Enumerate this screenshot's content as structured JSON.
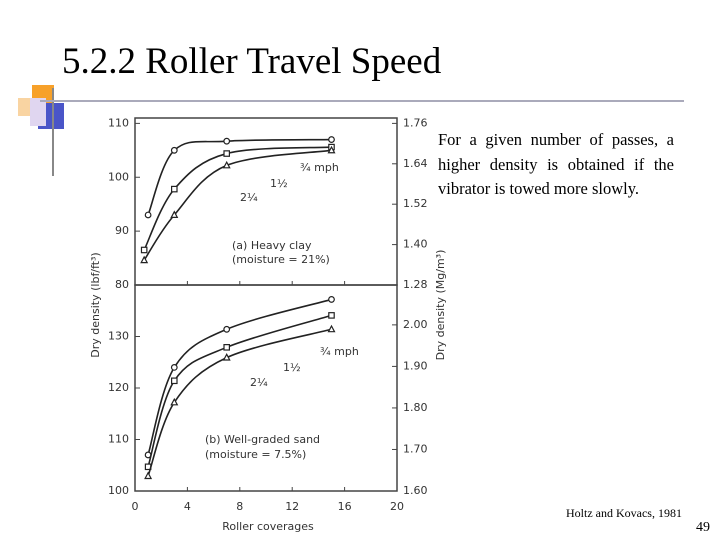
{
  "slide_title": "5.2.2 Roller Travel Speed",
  "body": "For a given number of passes, a higher density is obtained if the vibrator is towed more slowly.",
  "citation": "Holtz and Kovacs, 1981",
  "page_number": "49",
  "chart_data": [
    {
      "type": "line",
      "ylabel": "Dry density (lbf/ft³)",
      "y2label": "Dry density (Mg/m³)",
      "annotations": [
        "¾ mph",
        "1½",
        "2¼",
        "(a) Heavy clay",
        "(moisture = 21%)"
      ],
      "ylim": [
        80,
        111
      ],
      "yticks": [
        80,
        90,
        100,
        110
      ],
      "y2lim": [
        1.28,
        1.776
      ],
      "y2ticks": [
        {
          "value": 1.28,
          "label": "1.28"
        },
        {
          "value": 1.4,
          "label": "1.40"
        },
        1.52,
        1.64,
        1.76
      ],
      "series": [
        {
          "name": "¾ mph",
          "marker": "circle",
          "color": "#222222",
          "x": [
            1,
            3,
            7,
            15
          ],
          "values": [
            93,
            105,
            106.7,
            107
          ]
        },
        {
          "name": "1½",
          "marker": "square",
          "color": "#222222",
          "x": [
            0.7,
            3,
            7,
            15
          ],
          "values": [
            86.5,
            97.8,
            104.4,
            105.6
          ]
        },
        {
          "name": "2¼",
          "marker": "triangle",
          "color": "#222222",
          "x": [
            0.7,
            3,
            7,
            15
          ],
          "values": [
            84.6,
            93,
            102.2,
            105
          ]
        }
      ]
    },
    {
      "type": "line",
      "xlabel": "Roller coverages",
      "annotations": [
        "¾ mph",
        "1½",
        "2¼",
        "(b) Well-graded sand",
        "(moisture = 7.5%)"
      ],
      "xlim": [
        0,
        20
      ],
      "xticks": [
        0,
        4,
        8,
        12,
        16,
        20
      ],
      "ylim": [
        100,
        140
      ],
      "yticks": [
        100,
        110,
        120,
        130
      ],
      "y2lim": [
        1.6,
        2.096
      ],
      "y2ticks": [
        {
          "value": 1.6,
          "label": "1.60"
        },
        {
          "value": 1.7,
          "label": "1.70"
        },
        {
          "value": 1.8,
          "label": "1.80"
        },
        {
          "value": 1.9,
          "label": "1.90"
        },
        {
          "value": 2.0,
          "label": "2.00"
        }
      ],
      "series": [
        {
          "name": "¾ mph",
          "marker": "circle",
          "color": "#222222",
          "x": [
            1,
            3,
            7,
            15
          ],
          "values": [
            107,
            124,
            131.4,
            137.2
          ]
        },
        {
          "name": "1½",
          "marker": "square",
          "color": "#222222",
          "x": [
            1,
            3,
            7,
            15
          ],
          "values": [
            104.7,
            121.4,
            127.9,
            134.1
          ]
        },
        {
          "name": "2¼",
          "marker": "triangle",
          "color": "#222222",
          "x": [
            1,
            3,
            7,
            15
          ],
          "values": [
            102.9,
            117.2,
            125.9,
            131.4
          ]
        }
      ]
    }
  ]
}
